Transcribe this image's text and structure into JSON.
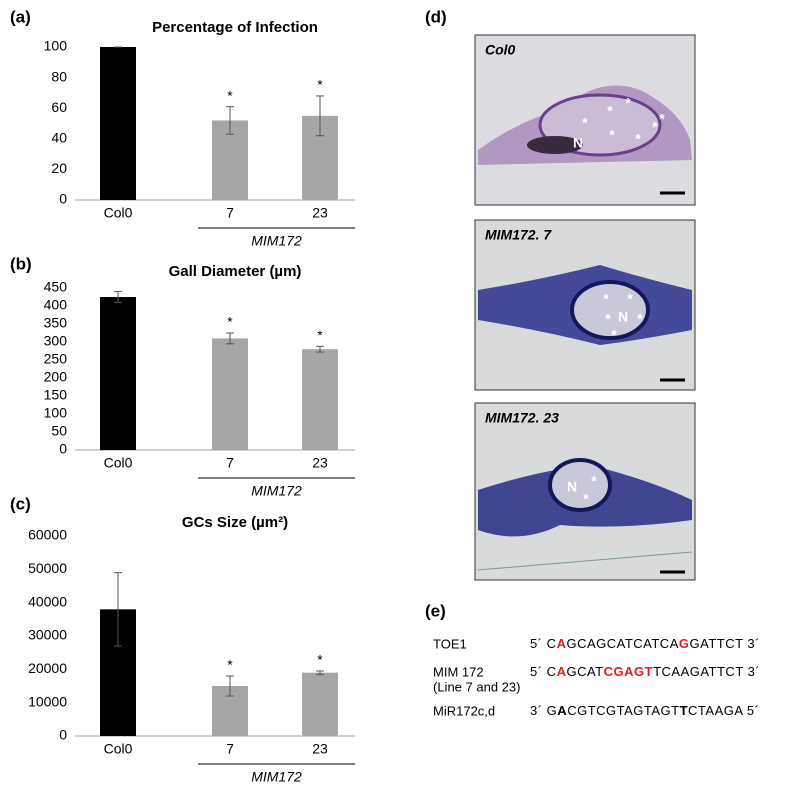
{
  "chart_data": [
    {
      "type": "bar",
      "panel": "(a)",
      "title": "Percentage of Infection",
      "categories": [
        "Col0",
        "7",
        "23"
      ],
      "values": [
        100,
        52,
        55
      ],
      "errors": [
        0,
        9,
        13
      ],
      "colors": [
        "#000000",
        "#a6a6a6",
        "#a6a6a6"
      ],
      "value_annotations": [
        null,
        "*",
        "*"
      ],
      "group_label": "MIM172",
      "ylim": [
        0,
        100
      ],
      "yticks": [
        0,
        20,
        40,
        60,
        80,
        100
      ],
      "grid": false
    },
    {
      "type": "bar",
      "panel": "(b)",
      "title": "Gall Diameter (µm)",
      "categories": [
        "Col0",
        "7",
        "23"
      ],
      "values": [
        425,
        310,
        280
      ],
      "errors": [
        15,
        15,
        8
      ],
      "colors": [
        "#000000",
        "#a6a6a6",
        "#a6a6a6"
      ],
      "value_annotations": [
        null,
        "*",
        "*"
      ],
      "group_label": "MIM172",
      "ylim": [
        0,
        450
      ],
      "yticks": [
        0,
        50,
        100,
        150,
        200,
        250,
        300,
        350,
        400,
        450
      ],
      "grid": false
    },
    {
      "type": "bar",
      "panel": "(c)",
      "title": "GCs Size (µm²)",
      "categories": [
        "Col0",
        "7",
        "23"
      ],
      "values": [
        38000,
        15000,
        19000
      ],
      "errors": [
        11000,
        3000,
        500
      ],
      "colors": [
        "#000000",
        "#a6a6a6",
        "#a6a6a6"
      ],
      "value_annotations": [
        null,
        "*",
        "*"
      ],
      "group_label": "MIM172",
      "ylim": [
        0,
        60000
      ],
      "yticks": [
        0,
        10000,
        20000,
        30000,
        40000,
        50000,
        60000
      ],
      "grid": false
    }
  ],
  "micrographs": {
    "panel": "(d)",
    "marks": {
      "nucleus": "N",
      "giant_cell": "*"
    },
    "images": [
      {
        "label": "Col0"
      },
      {
        "label": "MIM172. 7"
      },
      {
        "label": "MIM172. 23"
      }
    ]
  },
  "sequences": {
    "panel": "(e)",
    "rows": [
      {
        "name": "TOE1",
        "segments": [
          {
            "text": "5´ C"
          },
          {
            "text": "A",
            "style": "red"
          },
          {
            "text": "GCAGCATCATCA"
          },
          {
            "text": "G",
            "style": "red"
          },
          {
            "text": "GATTCT 3´"
          }
        ]
      },
      {
        "name": "MIM 172",
        "note": "(Line 7 and 23)",
        "segments": [
          {
            "text": "5´ C"
          },
          {
            "text": "A",
            "style": "red"
          },
          {
            "text": "GCAT"
          },
          {
            "text": "C",
            "style": "red"
          },
          {
            "text": "GAGT",
            "style": "red"
          },
          {
            "text": "TCAAGATTCT 3´"
          }
        ]
      },
      {
        "name": "MiR172c,d",
        "segments": [
          {
            "text": "3´ G"
          },
          {
            "text": "A",
            "style": "bold"
          },
          {
            "text": "CGTCGTAGTAGT"
          },
          {
            "text": "T",
            "style": "bold"
          },
          {
            "text": "CTAAGA 5´"
          }
        ]
      }
    ]
  }
}
